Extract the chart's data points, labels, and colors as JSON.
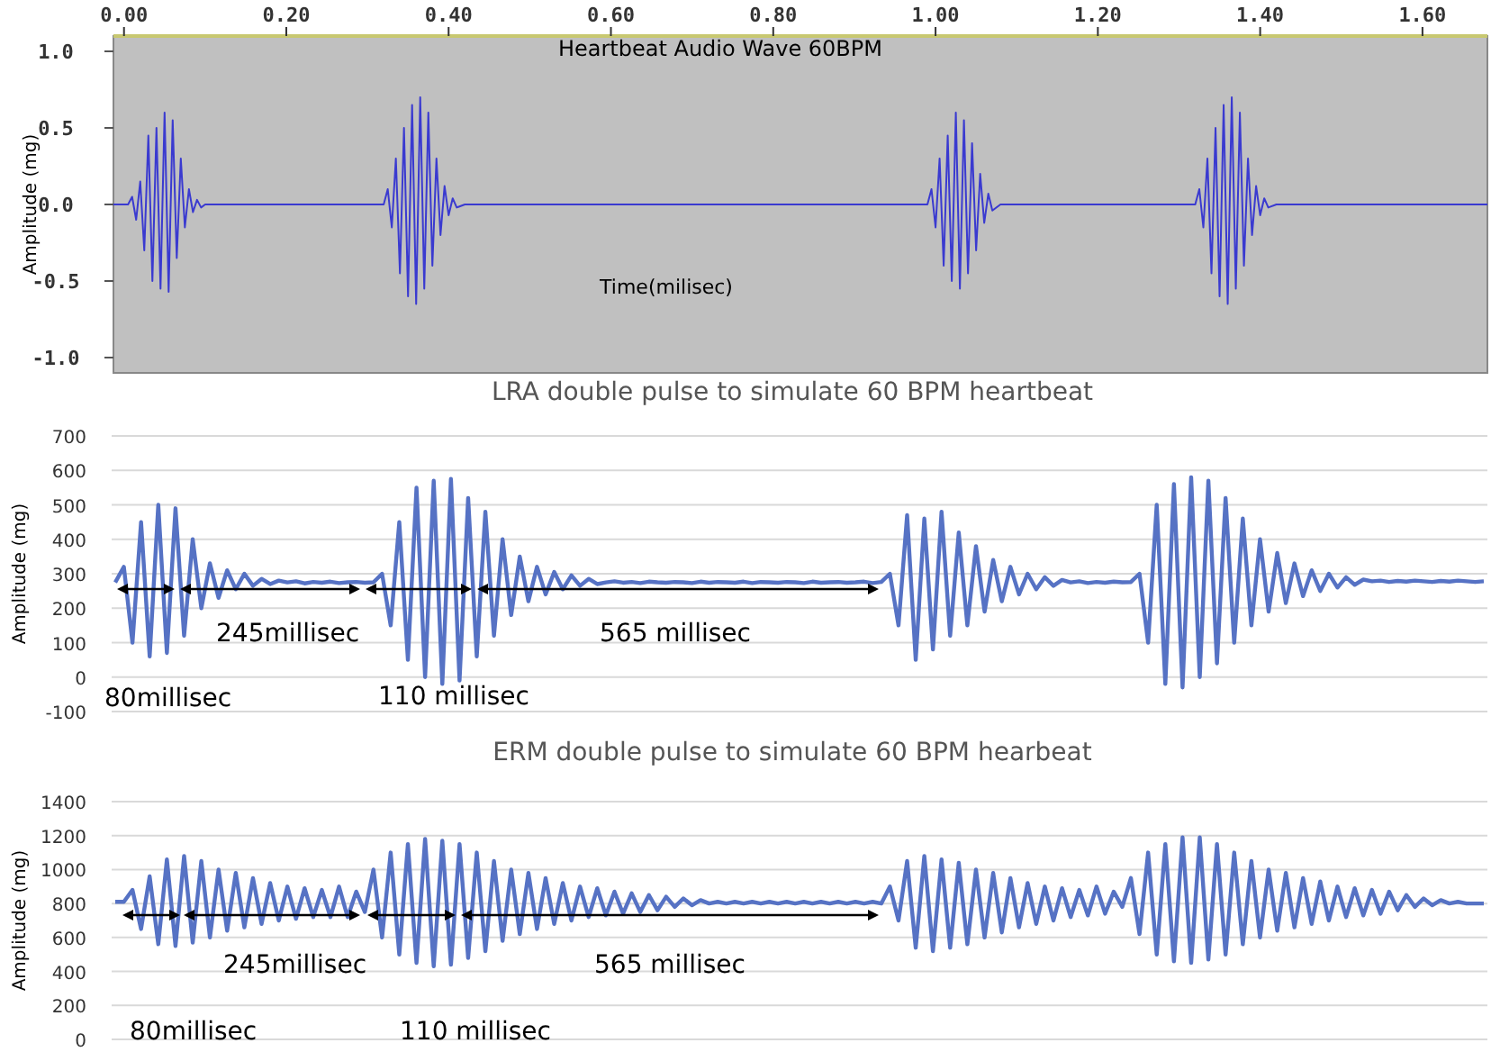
{
  "chart_data": [
    {
      "type": "line",
      "title": "Heartbeat Audio Wave 60BPM",
      "xlabel": "Time(milisec)",
      "ylabel": "Amplitude (mg)",
      "xlim": [
        -0.013,
        1.68
      ],
      "ylim": [
        -1.1,
        1.1
      ],
      "xticks": [
        {
          "value": 0,
          "label": "0.00"
        },
        {
          "value": 0.2,
          "label": "0.20"
        },
        {
          "value": 0.4,
          "label": "0.40"
        },
        {
          "value": 0.6,
          "label": "0.60"
        },
        {
          "value": 0.8,
          "label": "0.80"
        },
        {
          "value": 1.0,
          "label": "1.00"
        },
        {
          "value": 1.2,
          "label": "1.20"
        },
        {
          "value": 1.4,
          "label": "1.40"
        },
        {
          "value": 1.6,
          "label": "1.60"
        }
      ],
      "yticks": [
        {
          "value": 1,
          "label": "1.0"
        },
        {
          "value": 0.5,
          "label": "0.5"
        },
        {
          "value": 0,
          "label": "0.0"
        },
        {
          "value": -0.5,
          "label": "-0.5"
        },
        {
          "value": -1,
          "label": "-1.0"
        }
      ],
      "grid": false,
      "marker": "none",
      "line_style": "solid",
      "series": [
        {
          "color": "#3a3ad0",
          "x": [
            -0.013,
            0.005,
            0.01,
            0.015,
            0.02,
            0.025,
            0.03,
            0.035,
            0.04,
            0.045,
            0.05,
            0.055,
            0.06,
            0.065,
            0.07,
            0.075,
            0.08,
            0.085,
            0.09,
            0.095,
            0.1,
            0.32,
            0.325,
            0.33,
            0.335,
            0.34,
            0.345,
            0.35,
            0.355,
            0.36,
            0.365,
            0.37,
            0.375,
            0.38,
            0.385,
            0.39,
            0.395,
            0.4,
            0.405,
            0.41,
            0.42,
            0.99,
            0.995,
            1.0,
            1.005,
            1.01,
            1.015,
            1.02,
            1.025,
            1.03,
            1.035,
            1.04,
            1.045,
            1.05,
            1.055,
            1.06,
            1.065,
            1.07,
            1.08,
            1.32,
            1.325,
            1.33,
            1.335,
            1.34,
            1.345,
            1.35,
            1.355,
            1.36,
            1.365,
            1.37,
            1.375,
            1.38,
            1.385,
            1.39,
            1.395,
            1.4,
            1.405,
            1.41,
            1.42,
            1.68
          ],
          "values": [
            0,
            0,
            0.05,
            -0.1,
            0.15,
            -0.3,
            0.45,
            -0.5,
            0.5,
            -0.55,
            0.6,
            -0.57,
            0.55,
            -0.35,
            0.3,
            -0.15,
            0.1,
            -0.05,
            0.03,
            -0.02,
            0,
            0,
            0.1,
            -0.15,
            0.3,
            -0.45,
            0.5,
            -0.6,
            0.65,
            -0.65,
            0.7,
            -0.55,
            0.6,
            -0.4,
            0.3,
            -0.2,
            0.12,
            -0.07,
            0.04,
            -0.02,
            0,
            0,
            0.1,
            -0.15,
            0.3,
            -0.4,
            0.45,
            -0.5,
            0.6,
            -0.55,
            0.55,
            -0.45,
            0.4,
            -0.3,
            0.2,
            -0.12,
            0.07,
            -0.04,
            0,
            0,
            0.1,
            -0.15,
            0.3,
            -0.45,
            0.5,
            -0.6,
            0.65,
            -0.65,
            0.7,
            -0.55,
            0.6,
            -0.4,
            0.3,
            -0.2,
            0.12,
            -0.07,
            0.04,
            -0.02,
            0,
            0
          ]
        }
      ]
    },
    {
      "type": "line",
      "title": "LRA double pulse to simulate 60 BPM heartbeat",
      "ylabel": "Amplitude (mg)",
      "ylim": [
        -100,
        700
      ],
      "yticks": [
        -100,
        0,
        100,
        200,
        300,
        400,
        500,
        600,
        700
      ],
      "grid": "y",
      "marker": "none",
      "line_style": "solid",
      "annotations": [
        "80millisec",
        "245millisec",
        "110 millisec",
        "565 millisec"
      ],
      "categories": [
        null,
        null,
        null,
        null,
        null,
        null,
        null,
        null,
        null,
        null,
        null,
        null,
        null,
        null,
        null,
        null,
        null,
        null,
        null,
        null,
        null,
        null,
        null,
        null,
        null,
        null,
        null,
        null,
        null,
        null,
        null,
        null,
        null,
        null,
        null,
        null,
        null,
        null,
        null,
        null,
        null,
        null,
        null,
        null,
        null,
        null,
        null,
        null,
        null,
        null,
        null,
        null,
        null,
        null,
        null,
        null,
        null,
        null,
        null,
        null,
        null,
        null,
        null,
        null,
        null,
        null,
        null,
        null,
        null,
        null,
        null,
        null,
        null,
        null,
        null,
        null,
        null,
        null,
        null,
        null,
        null,
        null,
        null,
        null,
        null,
        null,
        null,
        null,
        null,
        null,
        null,
        null,
        null,
        null,
        null,
        null,
        null,
        null,
        null,
        null,
        null,
        null,
        null,
        null,
        null,
        null,
        null,
        null,
        null,
        null,
        null,
        null,
        null,
        null,
        null,
        null,
        null,
        null,
        null,
        null,
        null,
        null,
        null,
        null,
        null,
        null,
        null,
        null,
        null,
        null,
        null,
        null,
        null,
        null,
        null,
        null,
        null,
        null,
        null,
        null,
        null,
        null,
        null,
        null,
        null,
        null,
        null,
        null,
        null,
        null,
        null,
        null,
        null,
        null,
        null,
        null,
        null,
        null,
        null,
        null
      ],
      "series": [
        {
          "color": "#5672c4",
          "values": [
            275,
            320,
            100,
            450,
            60,
            500,
            70,
            490,
            120,
            400,
            200,
            330,
            230,
            310,
            255,
            300,
            265,
            285,
            270,
            280,
            275,
            278,
            272,
            276,
            274,
            277,
            273,
            275,
            276,
            274,
            275,
            300,
            150,
            450,
            50,
            550,
            0,
            570,
            -20,
            575,
            -10,
            520,
            60,
            480,
            120,
            400,
            180,
            350,
            220,
            320,
            240,
            305,
            255,
            295,
            265,
            285,
            270,
            275,
            278,
            274,
            276,
            273,
            277,
            275,
            274,
            276,
            275,
            273,
            277,
            274,
            276,
            275,
            274,
            277,
            273,
            276,
            275,
            274,
            276,
            275,
            273,
            277,
            274,
            275,
            276,
            274,
            275,
            277,
            273,
            276,
            300,
            150,
            470,
            50,
            460,
            80,
            480,
            120,
            420,
            150,
            380,
            190,
            340,
            220,
            320,
            240,
            300,
            255,
            290,
            265,
            282,
            275,
            278,
            273,
            276,
            274,
            277,
            275,
            276,
            300,
            100,
            500,
            -20,
            560,
            -30,
            580,
            0,
            570,
            40,
            520,
            100,
            460,
            150,
            400,
            190,
            360,
            215,
            330,
            235,
            310,
            250,
            300,
            260,
            290,
            268,
            283,
            278,
            280,
            276,
            279,
            277,
            280,
            278,
            276,
            279,
            277,
            280,
            278,
            276,
            278
          ]
        }
      ]
    },
    {
      "type": "line",
      "title": "ERM double pulse to simulate 60 BPM hearbeat",
      "ylabel": "Amplitude (mg)",
      "ylim": [
        0,
        1400
      ],
      "yticks": [
        0,
        200,
        400,
        600,
        800,
        1000,
        1200,
        1400
      ],
      "grid": "y",
      "marker": "none",
      "line_style": "solid",
      "annotations": [
        "80millisec",
        "245millisec",
        "110 millisec",
        "565 millisec"
      ],
      "categories": [
        null,
        null,
        null,
        null,
        null,
        null,
        null,
        null,
        null,
        null,
        null,
        null,
        null,
        null,
        null,
        null,
        null,
        null,
        null,
        null,
        null,
        null,
        null,
        null,
        null,
        null,
        null,
        null,
        null,
        null,
        null,
        null,
        null,
        null,
        null,
        null,
        null,
        null,
        null,
        null,
        null,
        null,
        null,
        null,
        null,
        null,
        null,
        null,
        null,
        null,
        null,
        null,
        null,
        null,
        null,
        null,
        null,
        null,
        null,
        null,
        null,
        null,
        null,
        null,
        null,
        null,
        null,
        null,
        null,
        null,
        null,
        null,
        null,
        null,
        null,
        null,
        null,
        null,
        null,
        null,
        null,
        null,
        null,
        null,
        null,
        null,
        null,
        null,
        null,
        null,
        null,
        null,
        null,
        null,
        null,
        null,
        null,
        null,
        null,
        null,
        null,
        null,
        null,
        null,
        null,
        null,
        null,
        null,
        null,
        null,
        null,
        null,
        null,
        null,
        null,
        null,
        null,
        null,
        null,
        null,
        null,
        null,
        null,
        null,
        null,
        null,
        null,
        null,
        null,
        null,
        null,
        null,
        null,
        null,
        null,
        null,
        null,
        null,
        null,
        null,
        null,
        null,
        null,
        null,
        null,
        null,
        null,
        null,
        null,
        null,
        null,
        null,
        null,
        null,
        null,
        null,
        null,
        null,
        null,
        null
      ],
      "series": [
        {
          "color": "#5672c4",
          "values": [
            810,
            810,
            880,
            650,
            960,
            560,
            1060,
            550,
            1080,
            570,
            1050,
            600,
            1000,
            640,
            980,
            660,
            950,
            680,
            920,
            700,
            900,
            710,
            890,
            720,
            880,
            720,
            900,
            720,
            870,
            750,
            1000,
            600,
            1100,
            500,
            1150,
            450,
            1180,
            430,
            1170,
            440,
            1150,
            480,
            1100,
            520,
            1050,
            580,
            1000,
            620,
            980,
            650,
            950,
            680,
            920,
            700,
            900,
            720,
            890,
            730,
            870,
            740,
            860,
            750,
            850,
            760,
            840,
            780,
            830,
            790,
            820,
            800,
            810,
            800,
            810,
            800,
            810,
            800,
            810,
            800,
            810,
            800,
            810,
            800,
            810,
            800,
            810,
            800,
            810,
            800,
            810,
            800,
            900,
            700,
            1050,
            540,
            1080,
            520,
            1060,
            540,
            1040,
            560,
            1000,
            600,
            980,
            630,
            950,
            660,
            920,
            680,
            900,
            700,
            890,
            720,
            880,
            730,
            900,
            740,
            870,
            780,
            950,
            620,
            1100,
            500,
            1150,
            460,
            1190,
            450,
            1190,
            470,
            1150,
            500,
            1100,
            560,
            1050,
            600,
            1000,
            640,
            980,
            660,
            950,
            680,
            930,
            700,
            900,
            720,
            890,
            730,
            880,
            740,
            870,
            760,
            850,
            780,
            830,
            790,
            820,
            800,
            810,
            800,
            800,
            800
          ]
        }
      ]
    }
  ]
}
